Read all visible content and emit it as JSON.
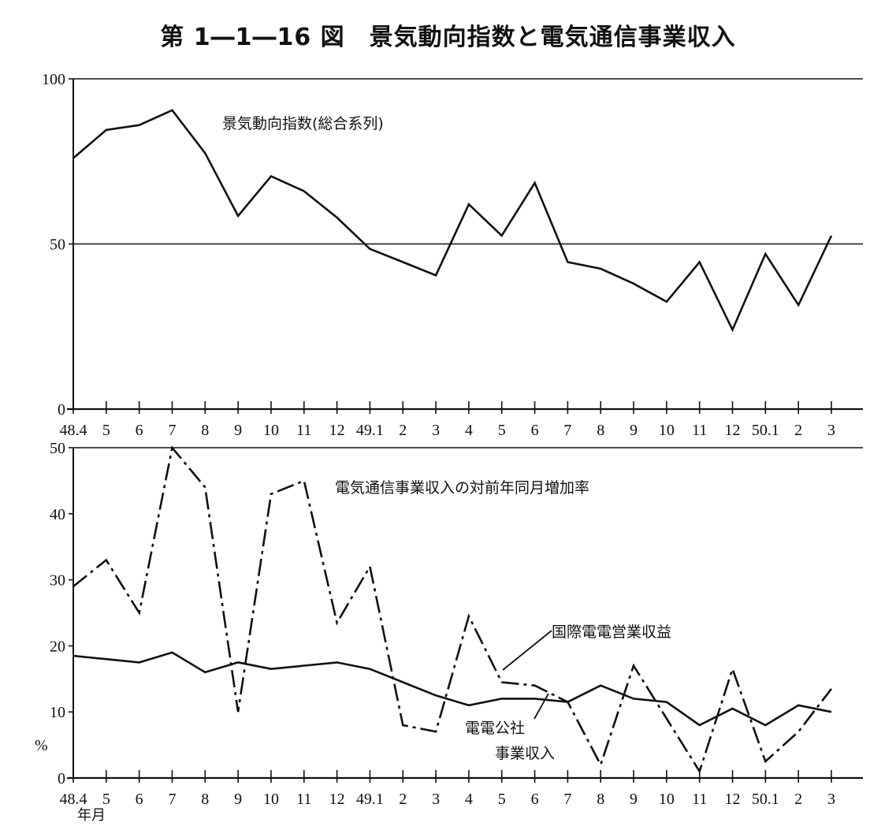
{
  "title": "第 1―1―16 図　景気動向指数と電気通信事業収入",
  "x_month_labels": [
    "48.4",
    "5",
    "6",
    "7",
    "8",
    "9",
    "10",
    "11",
    "12",
    "49.1",
    "2",
    "3",
    "4",
    "5",
    "6",
    "7",
    "8",
    "9",
    "10",
    "11",
    "12",
    "50.1",
    "2",
    "3"
  ],
  "x_axis_unit": "年月",
  "y_unit": "%",
  "chart_data": [
    {
      "type": "line",
      "series": [
        {
          "name": "景気動向指数(総合系列)",
          "values": [
            76,
            84.5,
            86,
            90.5,
            77.5,
            58.5,
            70.5,
            66,
            58,
            48.5,
            44.5,
            40.5,
            62,
            52.5,
            68.5,
            44.5,
            42.5,
            38,
            32.5,
            44.5,
            24,
            47,
            31.5,
            52.5
          ],
          "color": "#111111",
          "style": "solid"
        }
      ],
      "ylim": [
        0,
        100
      ],
      "yticks": [
        0,
        50,
        100
      ],
      "reference_line": 50,
      "grid": false
    },
    {
      "type": "line",
      "series": [
        {
          "name": "電気通信事業収入の対前年同月増加率",
          "values": [
            29,
            33,
            25,
            50,
            44,
            10,
            43,
            45,
            23.5,
            32,
            8,
            7,
            24.5,
            14.5,
            14,
            11.5,
            2,
            17,
            9,
            1,
            16.5,
            2.5,
            7,
            13.5
          ],
          "color": "#111111",
          "style": "dash-dot"
        },
        {
          "name": "電電公社事業収入",
          "values": [
            18.5,
            18,
            17.5,
            19,
            16,
            17.5,
            16.5,
            17,
            17.5,
            16.5,
            14.5,
            12.5,
            11,
            12,
            12,
            11.5,
            14,
            12,
            11.5,
            8,
            10.5,
            8,
            11,
            10
          ],
          "color": "#111111",
          "style": "solid"
        }
      ],
      "ylim": [
        0,
        50
      ],
      "yticks": [
        0,
        10,
        20,
        30,
        40,
        50
      ],
      "grid": false
    }
  ],
  "annotations": {
    "top_series": "景気動向指数(総合系列)",
    "bottom_header": "電気通信事業収入の対前年同月増加率",
    "kokusai": "国際電電営業収益",
    "denden_line1": "電電公社",
    "denden_line2": "事業収入"
  }
}
